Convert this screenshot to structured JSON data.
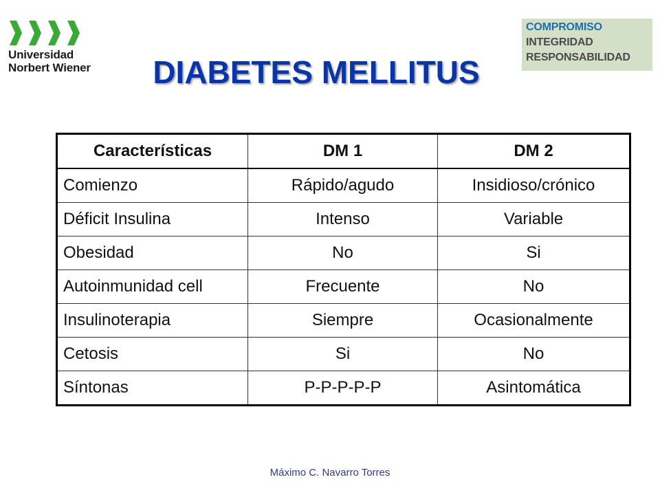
{
  "logo_left": {
    "line1": "Universidad",
    "line2": "Norbert Wiener",
    "mark_color": "#3aa935"
  },
  "logo_right": {
    "line1": "COMPROMISO",
    "line2": "INTEGRIDAD",
    "line3": "RESPONSABILIDAD"
  },
  "title": "DIABETES MELLITUS",
  "table": {
    "headers": [
      "Características",
      "DM 1",
      "DM 2"
    ],
    "rows": [
      [
        "Comienzo",
        "Rápido/agudo",
        "Insidioso/crónico"
      ],
      [
        "Déficit Insulina",
        "Intenso",
        "Variable"
      ],
      [
        "Obesidad",
        "No",
        "Si"
      ],
      [
        "Autoinmunidad cell",
        "Frecuente",
        "No"
      ],
      [
        "Insulinoterapia",
        "Siempre",
        "Ocasionalmente"
      ],
      [
        "Cetosis",
        "Si",
        "No"
      ],
      [
        "Síntonas",
        "P-P-P-P-P",
        "Asintomática"
      ]
    ]
  },
  "footer": "Máximo C.  Navarro Torres",
  "colors": {
    "title": "#0a35a8",
    "logo_green": "#3aa935"
  }
}
